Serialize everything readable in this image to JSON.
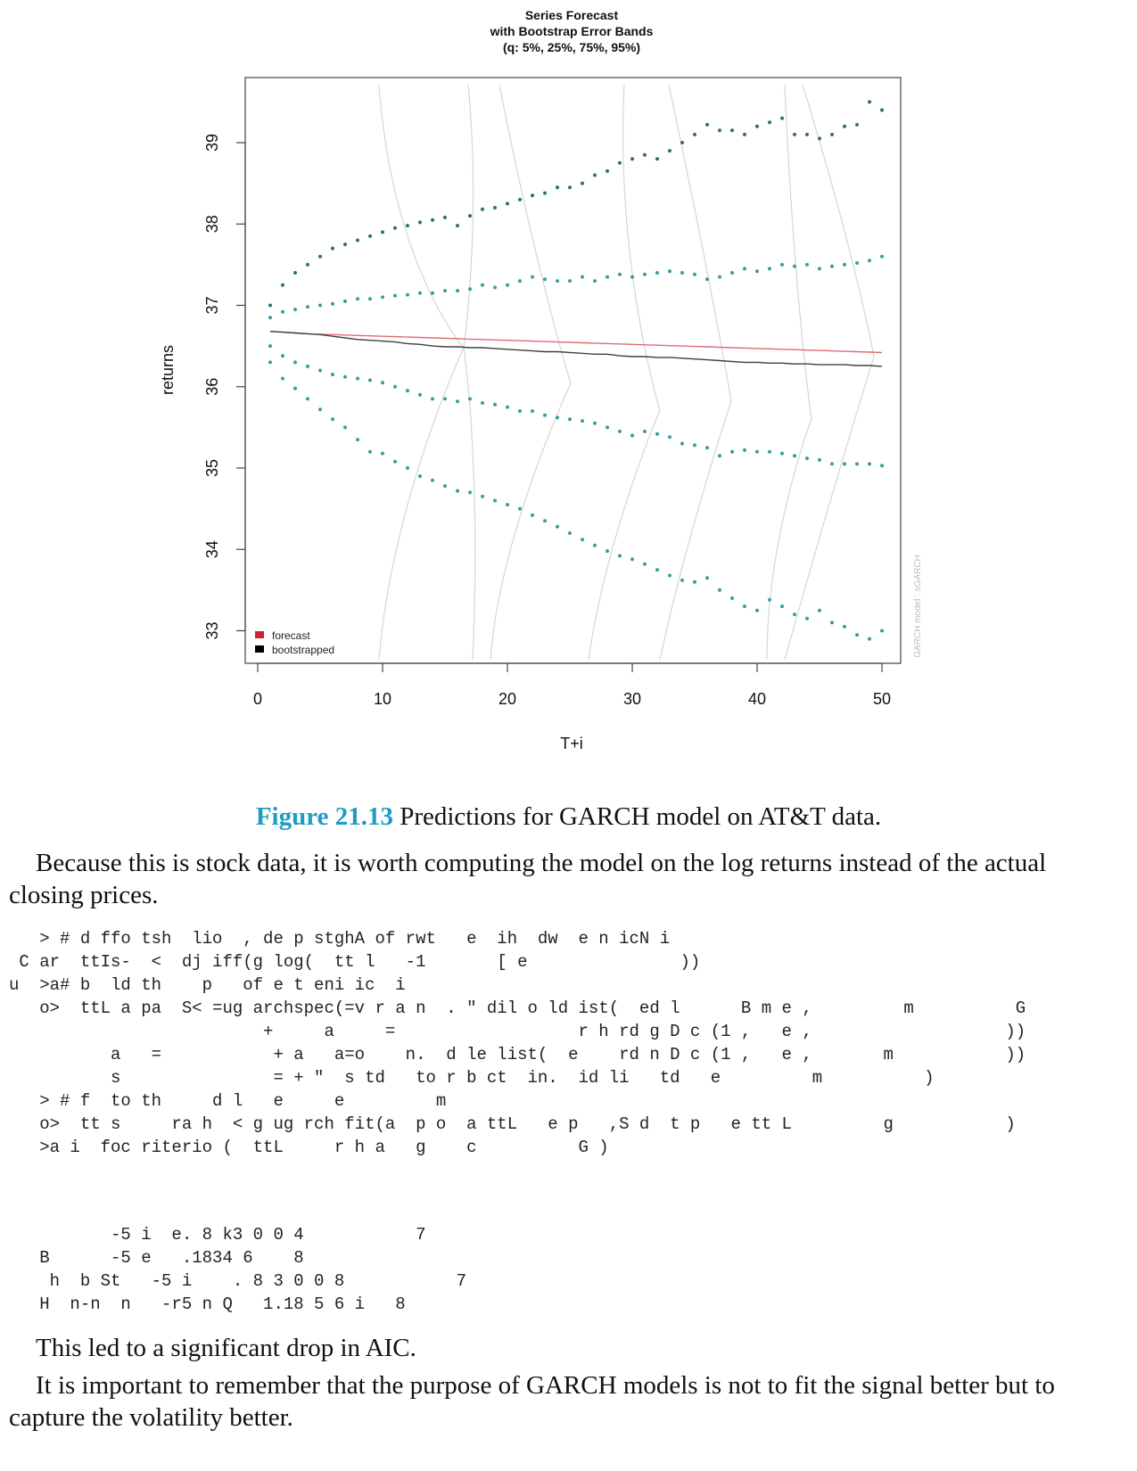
{
  "chart_data": {
    "type": "line",
    "title": [
      "Series Forecast",
      "with Bootstrap Error Bands",
      "(q: 5%, 25%, 75%, 95%)"
    ],
    "xlabel": "T+i",
    "ylabel": "returns",
    "xlim": [
      -1,
      51.5
    ],
    "ylim": [
      32.6,
      39.8
    ],
    "xticks": [
      0,
      10,
      20,
      30,
      40,
      50
    ],
    "yticks": [
      33,
      34,
      35,
      36,
      37,
      38,
      39
    ],
    "watermark": "GARCH model : sGARCH",
    "legend": {
      "position": "bottom-left",
      "entries": [
        {
          "label": "forecast",
          "color": "#d0202e"
        },
        {
          "label": "bootstrapped",
          "color": "#000000"
        }
      ]
    },
    "series": [
      {
        "name": "forecast",
        "color": "#e06b75",
        "values": [
          36.68,
          36.67,
          36.66,
          36.65,
          36.645,
          36.64,
          36.635,
          36.63,
          36.625,
          36.62,
          36.615,
          36.61,
          36.605,
          36.6,
          36.595,
          36.59,
          36.585,
          36.58,
          36.575,
          36.57,
          36.565,
          36.56,
          36.555,
          36.55,
          36.545,
          36.54,
          36.535,
          36.53,
          36.525,
          36.52,
          36.515,
          36.51,
          36.505,
          36.5,
          36.495,
          36.49,
          36.485,
          36.48,
          36.475,
          36.47,
          36.465,
          36.46,
          36.455,
          36.45,
          36.445,
          36.44,
          36.435,
          36.43,
          36.425,
          36.42
        ]
      },
      {
        "name": "bootstrapped",
        "color": "#404040",
        "values": [
          36.68,
          36.67,
          36.66,
          36.65,
          36.64,
          36.62,
          36.6,
          36.58,
          36.57,
          36.56,
          36.55,
          36.53,
          36.52,
          36.5,
          36.49,
          36.49,
          36.48,
          36.48,
          36.47,
          36.46,
          36.45,
          36.44,
          36.43,
          36.43,
          36.42,
          36.41,
          36.4,
          36.4,
          36.38,
          36.37,
          36.37,
          36.36,
          36.36,
          36.35,
          36.34,
          36.33,
          36.32,
          36.31,
          36.3,
          36.3,
          36.29,
          36.29,
          36.28,
          36.28,
          36.27,
          36.27,
          36.27,
          36.26,
          36.26,
          36.25
        ]
      },
      {
        "name": "q95",
        "color": "#2f6f6f",
        "values": [
          37.0,
          37.25,
          37.4,
          37.5,
          37.6,
          37.7,
          37.75,
          37.8,
          37.85,
          37.9,
          37.95,
          37.98,
          38.02,
          38.05,
          38.08,
          37.98,
          38.1,
          38.18,
          38.2,
          38.25,
          38.3,
          38.35,
          38.38,
          38.45,
          38.45,
          38.5,
          38.6,
          38.65,
          38.75,
          38.8,
          38.85,
          38.8,
          38.9,
          39.0,
          39.1,
          39.22,
          39.15,
          39.15,
          39.1,
          39.2,
          39.25,
          39.3,
          39.1,
          39.1,
          39.05,
          39.1,
          39.2,
          39.22,
          39.5,
          39.4
        ]
      },
      {
        "name": "q75",
        "color": "#3b9c9c",
        "values": [
          36.85,
          36.92,
          36.95,
          36.98,
          37.0,
          37.02,
          37.05,
          37.08,
          37.08,
          37.1,
          37.12,
          37.13,
          37.15,
          37.15,
          37.18,
          37.18,
          37.2,
          37.25,
          37.22,
          37.25,
          37.3,
          37.35,
          37.32,
          37.3,
          37.3,
          37.35,
          37.3,
          37.35,
          37.38,
          37.35,
          37.38,
          37.4,
          37.42,
          37.4,
          37.38,
          37.32,
          37.35,
          37.4,
          37.45,
          37.42,
          37.45,
          37.5,
          37.48,
          37.5,
          37.45,
          37.48,
          37.5,
          37.52,
          37.55,
          37.6
        ]
      },
      {
        "name": "q25",
        "color": "#3b9c9c",
        "values": [
          36.5,
          36.38,
          36.3,
          36.25,
          36.2,
          36.15,
          36.12,
          36.1,
          36.08,
          36.05,
          36.0,
          35.95,
          35.9,
          35.85,
          35.85,
          35.82,
          35.85,
          35.8,
          35.78,
          35.75,
          35.7,
          35.7,
          35.65,
          35.62,
          35.6,
          35.58,
          35.55,
          35.5,
          35.45,
          35.4,
          35.45,
          35.42,
          35.38,
          35.3,
          35.28,
          35.25,
          35.15,
          35.2,
          35.22,
          35.2,
          35.2,
          35.18,
          35.15,
          35.12,
          35.1,
          35.05,
          35.05,
          35.05,
          35.05,
          35.03
        ]
      },
      {
        "name": "q05",
        "color": "#3b9c9c",
        "values": [
          36.3,
          36.1,
          35.98,
          35.85,
          35.72,
          35.6,
          35.5,
          35.35,
          35.2,
          35.18,
          35.08,
          35.0,
          34.9,
          34.85,
          34.78,
          34.72,
          34.7,
          34.65,
          34.6,
          34.55,
          34.5,
          34.42,
          34.35,
          34.28,
          34.2,
          34.12,
          34.05,
          33.98,
          33.92,
          33.88,
          33.82,
          33.75,
          33.68,
          33.62,
          33.6,
          33.65,
          33.5,
          33.4,
          33.3,
          33.25,
          33.38,
          33.3,
          33.2,
          33.15,
          33.25,
          33.1,
          33.05,
          32.95,
          32.9,
          33.0
        ]
      }
    ]
  },
  "caption": {
    "label": "Figure 21.13",
    "text": " Predictions for GARCH model on AT&T data."
  },
  "paragraph1": "Because this is stock data, it is worth computing the model on the log returns instead of the actual closing prices.",
  "code_lines": [
    "   > # d ffo tsh  lio  , de p stghA of rwt   e  ih  dw  e n icN i",
    " C ar  ttIs-  <  dj iff(g log(  tt l   -1       [ e               ))",
    "u  >a# b  ld th    p   of e t eni ic  i",
    "   o>  ttL a pa  S< =ug archspec(=v r a n  . \" dil o ld ist(  ed l      B m e ,         m          G",
    "                         +     a     =                  r h rd g D c (1 ,   e ,                   ))",
    "          a   =           + a   a=o    n.  d le list(  e    rd n D c (1 ,   e ,       m           ))",
    "          s               = + \"  s td   to r b ct  in.  id li   td   e         m          )",
    "   > # f  to th     d l   e     e         m",
    "   o>  tt s     ra h  < g ug rch fit(a  p o  a ttL   e p   ,S d  t p   e tt L         g           )",
    "   >a i  foc riterio (  ttL     r h a   g    c          G )"
  ],
  "output_lines": [
    "          -5 i  e. 8 k3 0 0 4           7",
    "   B      -5 e   .1834 6    8",
    "    h  b St   -5 i    . 8 3 0 0 8           7",
    "   H  n-n  n   -r5 n Q   1.18 5 6 i   8"
  ],
  "paragraph2": "This led to a significant drop in AIC.",
  "paragraph3": "It is important to remember that the purpose of GARCH models is not to fit the signal better but to capture the volatility better."
}
